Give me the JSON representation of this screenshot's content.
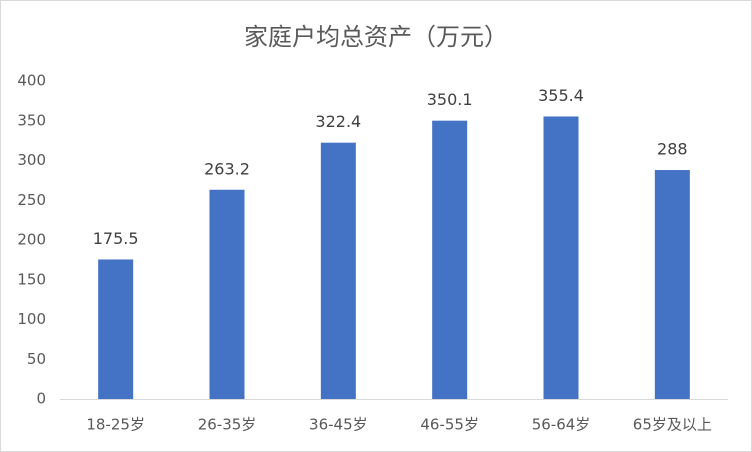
{
  "chart_data": {
    "type": "bar",
    "title": "家庭户均总资产（万元）",
    "categories": [
      "18-25岁",
      "26-35岁",
      "36-45岁",
      "46-55岁",
      "56-64岁",
      "65岁及以上"
    ],
    "values": [
      175.5,
      263.2,
      322.4,
      350.1,
      355.4,
      288
    ],
    "color": "#4472c4",
    "ylim": [
      0,
      400
    ],
    "yticks": [
      0,
      50,
      100,
      150,
      200,
      250,
      300,
      350,
      400
    ],
    "grid": false
  }
}
